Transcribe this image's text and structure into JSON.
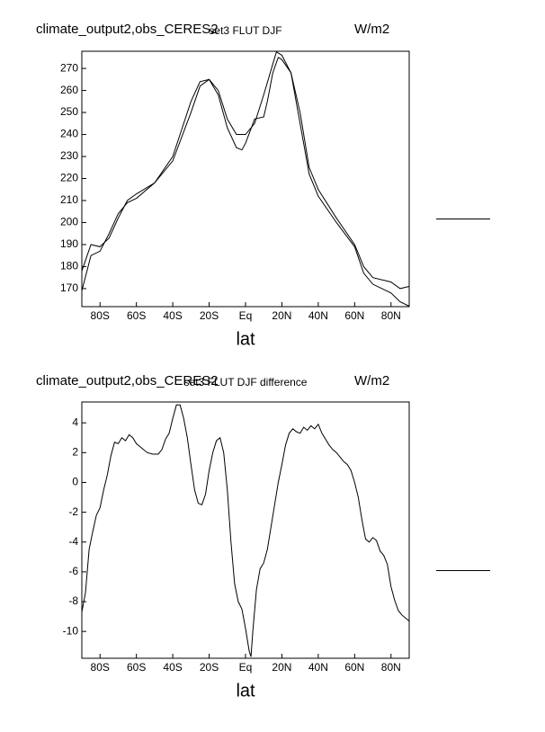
{
  "chart_data": [
    {
      "type": "line",
      "title": "climate_output2,obs_CERES2",
      "center_title": "set3 FLUT DJF",
      "units": "W/m2",
      "xlabel": "lat",
      "xlim": [
        -90,
        90
      ],
      "ylim": [
        161.8,
        277.8
      ],
      "xticks": [
        {
          "value": -80,
          "label": "80S"
        },
        {
          "value": -60,
          "label": "60S"
        },
        {
          "value": -40,
          "label": "40S"
        },
        {
          "value": -20,
          "label": "20S"
        },
        {
          "value": 0,
          "label": "Eq"
        },
        {
          "value": 20,
          "label": "20N"
        },
        {
          "value": 40,
          "label": "40N"
        },
        {
          "value": 60,
          "label": "60N"
        },
        {
          "value": 80,
          "label": "80N"
        }
      ],
      "yticks": [
        170,
        180,
        190,
        200,
        210,
        220,
        230,
        240,
        250,
        260,
        270
      ],
      "grid": false,
      "series": [
        {
          "color": "#000000",
          "x": [
            -90,
            -85,
            -80,
            -75,
            -70,
            -65,
            -60,
            -50,
            -40,
            -30,
            -25,
            -20,
            -15,
            -10,
            -5,
            0,
            5,
            10,
            15,
            17,
            20,
            25,
            30,
            35,
            40,
            50,
            60,
            65,
            70,
            80,
            85,
            90
          ],
          "values": [
            178,
            190,
            189,
            193,
            202,
            210,
            213,
            218,
            228,
            250,
            262,
            265,
            260,
            247,
            240,
            240,
            245,
            258,
            272,
            277.5,
            276,
            268,
            250,
            225,
            215,
            202,
            190,
            180,
            175,
            173,
            170,
            171
          ]
        },
        {
          "color": "#000000",
          "x": [
            -90,
            -85,
            -80,
            -75,
            -70,
            -65,
            -60,
            -50,
            -40,
            -30,
            -25,
            -20,
            -15,
            -10,
            -5,
            -2,
            0,
            5,
            10,
            12,
            15,
            18,
            20,
            25,
            30,
            35,
            40,
            50,
            60,
            65,
            70,
            80,
            85,
            90
          ],
          "values": [
            169,
            185,
            187,
            195,
            204,
            209,
            211,
            218,
            230,
            255,
            264,
            265,
            258,
            243,
            234,
            233,
            236,
            247,
            248,
            255,
            268,
            275,
            274,
            268,
            245,
            222,
            212,
            200,
            189,
            177,
            172,
            168,
            164,
            162
          ]
        }
      ]
    },
    {
      "type": "line",
      "title": "climate_output2,obs_CERES2",
      "center_title": "set3 FLUT DJF difference",
      "units": "W/m2",
      "xlabel": "lat",
      "xlim": [
        -90,
        90
      ],
      "ylim": [
        -11.8,
        5.4
      ],
      "xticks": [
        {
          "value": -80,
          "label": "80S"
        },
        {
          "value": -60,
          "label": "60S"
        },
        {
          "value": -40,
          "label": "40S"
        },
        {
          "value": -20,
          "label": "20S"
        },
        {
          "value": 0,
          "label": "Eq"
        },
        {
          "value": 20,
          "label": "20N"
        },
        {
          "value": 40,
          "label": "40N"
        },
        {
          "value": 60,
          "label": "60N"
        },
        {
          "value": 80,
          "label": "80N"
        }
      ],
      "yticks": [
        -10,
        -8,
        -6,
        -4,
        -2,
        0,
        2,
        4
      ],
      "grid": false,
      "series": [
        {
          "color": "#000000",
          "x": [
            -90,
            -88,
            -86,
            -84,
            -82,
            -80,
            -78,
            -76,
            -74,
            -72,
            -70,
            -68,
            -66,
            -64,
            -62,
            -60,
            -57,
            -54,
            -51,
            -48,
            -46,
            -44,
            -42,
            -40,
            -38,
            -36,
            -34,
            -32,
            -30,
            -28,
            -26,
            -24,
            -22,
            -20,
            -18,
            -16,
            -14,
            -12,
            -10,
            -8,
            -6,
            -4,
            -2,
            0,
            2,
            3,
            4,
            6,
            8,
            10,
            12,
            14,
            16,
            18,
            20,
            22,
            24,
            26,
            28,
            30,
            32,
            34,
            36,
            38,
            40,
            42,
            44,
            46,
            48,
            50,
            52,
            54,
            56,
            58,
            60,
            62,
            64,
            66,
            68,
            70,
            72,
            74,
            76,
            78,
            80,
            82,
            84,
            86,
            88,
            90
          ],
          "values": [
            -8.7,
            -7.4,
            -4.5,
            -3.3,
            -2.2,
            -1.7,
            -0.5,
            0.5,
            1.8,
            2.7,
            2.6,
            3.0,
            2.8,
            3.2,
            3.0,
            2.6,
            2.3,
            2.0,
            1.9,
            1.9,
            2.2,
            2.9,
            3.3,
            4.3,
            5.2,
            5.2,
            4.3,
            3.0,
            1.2,
            -0.5,
            -1.4,
            -1.5,
            -0.8,
            0.8,
            2.0,
            2.8,
            3.0,
            2.0,
            -0.5,
            -4.0,
            -6.8,
            -8.0,
            -8.5,
            -9.8,
            -11.3,
            -11.7,
            -10.0,
            -7.2,
            -5.8,
            -5.4,
            -4.5,
            -3.0,
            -1.5,
            0.0,
            1.2,
            2.5,
            3.3,
            3.6,
            3.4,
            3.3,
            3.7,
            3.5,
            3.8,
            3.6,
            3.9,
            3.3,
            2.9,
            2.5,
            2.2,
            2.0,
            1.7,
            1.4,
            1.2,
            0.8,
            0.0,
            -1.0,
            -2.5,
            -3.8,
            -4.0,
            -3.7,
            -3.9,
            -4.6,
            -4.9,
            -5.5,
            -7.0,
            -7.9,
            -8.6,
            -8.9,
            -9.1,
            -9.3
          ]
        }
      ]
    }
  ]
}
